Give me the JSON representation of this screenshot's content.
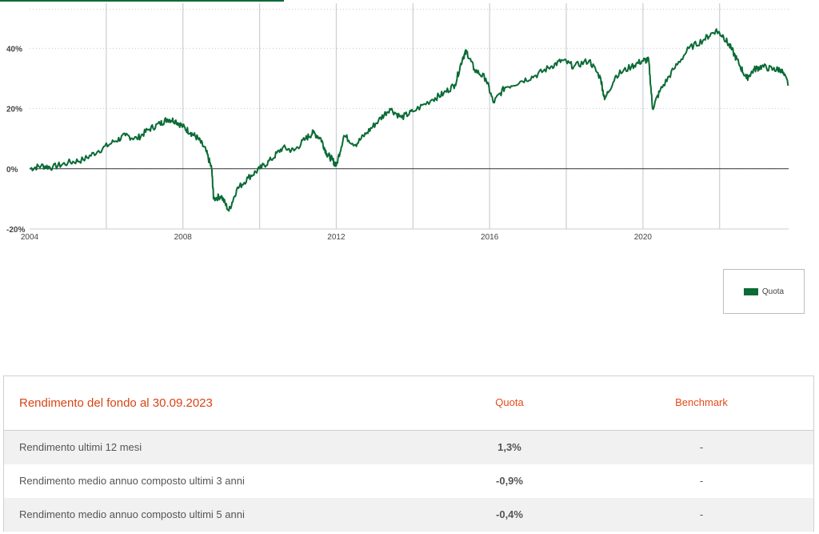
{
  "colors": {
    "series": "#0a6b35",
    "accent": "#e64a19",
    "grid_vertical": "#c8cfd4",
    "grid_horizontal": "#c9c9c9",
    "zero_line": "#333333"
  },
  "chart_data": {
    "type": "line",
    "x_range": [
      2004.0,
      2023.8
    ],
    "ylim": [
      -20,
      55
    ],
    "y_ticks": [
      -20,
      0,
      20,
      40
    ],
    "y_tick_labels": [
      "-20%",
      "0%",
      "20%",
      "40%"
    ],
    "x_ticks": [
      2004,
      2008,
      2012,
      2016,
      2020
    ],
    "x_tick_labels": [
      "2004",
      "2008",
      "2012",
      "2016",
      "2020"
    ],
    "vertical_grid": [
      2006,
      2008,
      2010,
      2012,
      2014,
      2016,
      2018,
      2020,
      2022
    ],
    "horizontal_grid": "dotted",
    "legend_position": "bottom-right",
    "series": [
      {
        "name": "Quota",
        "points": [
          [
            2004.0,
            0
          ],
          [
            2004.3,
            1
          ],
          [
            2004.6,
            0.5
          ],
          [
            2005.0,
            2
          ],
          [
            2005.4,
            3
          ],
          [
            2005.8,
            6
          ],
          [
            2006.2,
            9
          ],
          [
            2006.5,
            11
          ],
          [
            2006.8,
            10
          ],
          [
            2007.1,
            13
          ],
          [
            2007.4,
            15
          ],
          [
            2007.6,
            16.5
          ],
          [
            2007.8,
            16
          ],
          [
            2008.0,
            14
          ],
          [
            2008.2,
            12
          ],
          [
            2008.4,
            10
          ],
          [
            2008.6,
            6
          ],
          [
            2008.75,
            0
          ],
          [
            2008.8,
            -10
          ],
          [
            2009.0,
            -9
          ],
          [
            2009.2,
            -14
          ],
          [
            2009.4,
            -7
          ],
          [
            2009.7,
            -3
          ],
          [
            2010.0,
            0
          ],
          [
            2010.3,
            3
          ],
          [
            2010.6,
            7
          ],
          [
            2010.9,
            6
          ],
          [
            2011.2,
            10
          ],
          [
            2011.4,
            12
          ],
          [
            2011.6,
            10
          ],
          [
            2011.75,
            5
          ],
          [
            2011.9,
            3
          ],
          [
            2012.0,
            1
          ],
          [
            2012.2,
            11
          ],
          [
            2012.5,
            8
          ],
          [
            2012.8,
            12
          ],
          [
            2013.1,
            16
          ],
          [
            2013.4,
            20
          ],
          [
            2013.7,
            17
          ],
          [
            2014.0,
            19
          ],
          [
            2014.5,
            23
          ],
          [
            2014.8,
            25
          ],
          [
            2015.1,
            28
          ],
          [
            2015.3,
            37
          ],
          [
            2015.4,
            39
          ],
          [
            2015.6,
            33
          ],
          [
            2015.9,
            30
          ],
          [
            2016.1,
            22
          ],
          [
            2016.4,
            27
          ],
          [
            2016.8,
            29
          ],
          [
            2017.2,
            31
          ],
          [
            2017.6,
            34
          ],
          [
            2017.9,
            36
          ],
          [
            2018.2,
            34
          ],
          [
            2018.6,
            36
          ],
          [
            2018.9,
            30
          ],
          [
            2019.0,
            23
          ],
          [
            2019.3,
            31
          ],
          [
            2019.7,
            34
          ],
          [
            2020.0,
            36
          ],
          [
            2020.15,
            36
          ],
          [
            2020.25,
            20
          ],
          [
            2020.45,
            26
          ],
          [
            2020.8,
            33
          ],
          [
            2021.2,
            40
          ],
          [
            2021.6,
            43
          ],
          [
            2021.9,
            46
          ],
          [
            2022.1,
            44
          ],
          [
            2022.3,
            40
          ],
          [
            2022.5,
            35
          ],
          [
            2022.7,
            30
          ],
          [
            2022.9,
            33
          ],
          [
            2023.1,
            34
          ],
          [
            2023.4,
            33
          ],
          [
            2023.6,
            33
          ],
          [
            2023.8,
            28
          ]
        ]
      }
    ]
  },
  "legend": {
    "label": "Quota"
  },
  "table": {
    "title": "Rendimento del fondo al 30.09.2023",
    "col_quota": "Quota",
    "col_benchmark": "Benchmark",
    "rows": [
      {
        "label": "Rendimento ultimi 12 mesi",
        "quota": "1,3%",
        "benchmark": "-"
      },
      {
        "label": "Rendimento medio annuo composto ultimi 3 anni",
        "quota": "-0,9%",
        "benchmark": "-"
      },
      {
        "label": "Rendimento medio annuo composto ultimi 5 anni",
        "quota": "-0,4%",
        "benchmark": "-"
      }
    ]
  }
}
